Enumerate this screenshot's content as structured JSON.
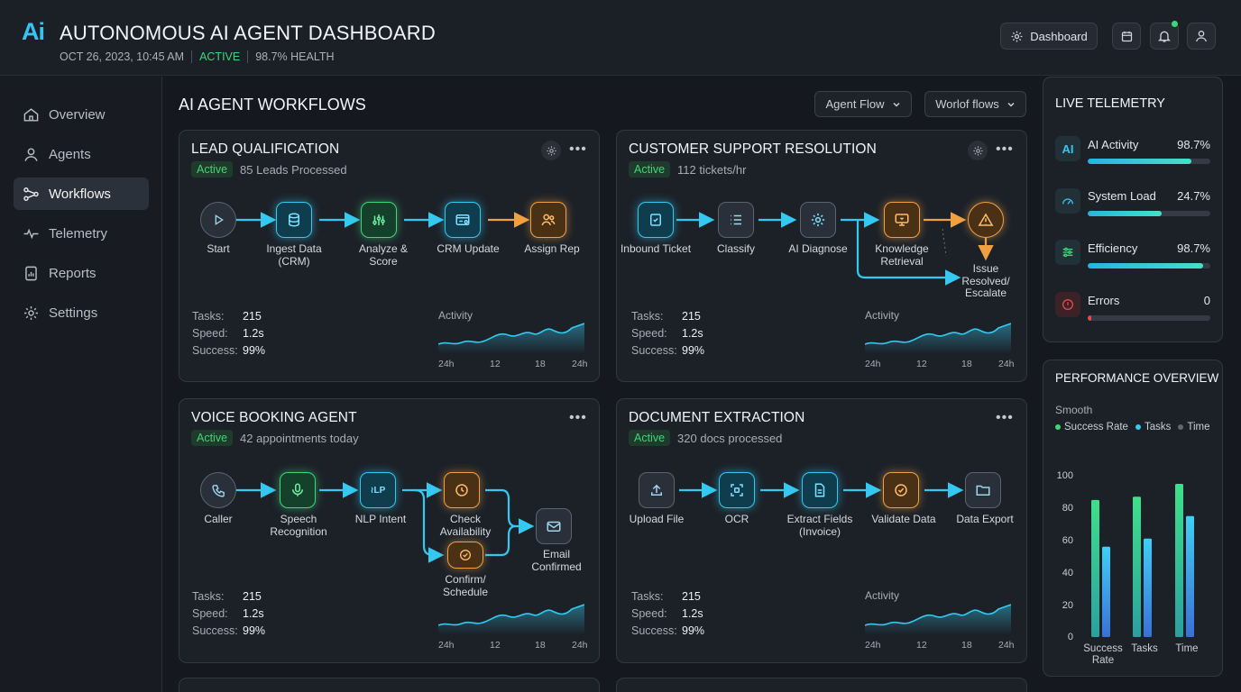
{
  "header": {
    "logo": "Ai",
    "title": "AUTONOMOUS AI AGENT DASHBOARD",
    "datetime": "OCT 26, 2023, 10:45 AM",
    "status": "ACTIVE",
    "health": "98.7% HEALTH",
    "dashboard_label": "Dashboard"
  },
  "sidebar": {
    "items": [
      {
        "label": "Overview",
        "icon": "home-icon"
      },
      {
        "label": "Agents",
        "icon": "user-icon"
      },
      {
        "label": "Workflows",
        "icon": "workflow-icon"
      },
      {
        "label": "Telemetry",
        "icon": "pulse-icon"
      },
      {
        "label": "Reports",
        "icon": "report-icon"
      },
      {
        "label": "Settings",
        "icon": "gear-icon"
      }
    ],
    "active": "Workflows"
  },
  "main": {
    "title": "AI AGENT WORKFLOWS",
    "dropdowns": [
      "Agent Flow",
      "Worlof flows"
    ]
  },
  "cards": [
    {
      "title": "LEAD QUALIFICATION",
      "status": "Active",
      "subtitle": "85 Leads Processed",
      "nodes": [
        "Start",
        "Ingest Data (CRM)",
        "Analyze & Score",
        "CRM Update",
        "Assign Rep"
      ],
      "stats": {
        "tasks_label": "Tasks:",
        "tasks": "215",
        "speed_label": "Speed:",
        "speed": "1.2s",
        "success_label": "Success:",
        "success": "99%"
      },
      "activity_label": "Activity",
      "ticks": [
        "24h",
        "12",
        "18",
        "24h"
      ]
    },
    {
      "title": "CUSTOMER SUPPORT RESOLUTION",
      "status": "Active",
      "subtitle": "112 tickets/hr",
      "nodes": [
        "Inbound Ticket",
        "Classify",
        "AI Diagnose",
        "Knowledge Retrieval",
        "Issue Resolved/ Escalate"
      ],
      "stats": {
        "tasks_label": "Tasks:",
        "tasks": "215",
        "speed_label": "Speed:",
        "speed": "1.2s",
        "success_label": "Success:",
        "success": "99%"
      },
      "activity_label": "Activity",
      "ticks": [
        "24h",
        "12",
        "18",
        "24h"
      ]
    },
    {
      "title": "VOICE BOOKING AGENT",
      "status": "Active",
      "subtitle": "42 appointments today",
      "nodes": [
        "Caller",
        "Speech Recognition",
        "NLP Intent",
        "Check Availability",
        "Confirm/ Schedule",
        "Email Confirmed"
      ],
      "stats": {
        "tasks_label": "Tasks:",
        "tasks": "215",
        "speed_label": "Speed:",
        "speed": "1.2s",
        "success_label": "Success:",
        "success": "99%"
      },
      "ticks": [
        "24h",
        "12",
        "18",
        "24h"
      ]
    },
    {
      "title": "DOCUMENT EXTRACTION",
      "status": "Active",
      "subtitle": "320 docs processed",
      "nodes": [
        "Upload File",
        "OCR",
        "Extract Fields (Invoice)",
        "Validate Data",
        "Data Export"
      ],
      "stats": {
        "tasks_label": "Tasks:",
        "tasks": "215",
        "speed_label": "Speed:",
        "speed": "1.2s",
        "success_label": "Success:",
        "success": "99%"
      },
      "activity_label": "Activity",
      "ticks": [
        "24h",
        "12",
        "18",
        "24h"
      ]
    }
  ],
  "telemetry": {
    "title": "LIVE TELEMETRY",
    "rows": [
      {
        "label": "AI Activity",
        "value": "98.7%",
        "fraction": 0.845,
        "icon": "ai-icon"
      },
      {
        "label": "System Load",
        "value": "24.7%",
        "fraction": 0.6,
        "icon": "gauge-icon"
      },
      {
        "label": "Efficiency",
        "value": "98.7%",
        "fraction": 0.94,
        "icon": "sliders-icon"
      },
      {
        "label": "Errors",
        "value": "0",
        "fraction": 0.03,
        "icon": "alert-icon"
      }
    ]
  },
  "performance": {
    "title": "PERFORMANCE OVERVIEW",
    "mode": "Smooth",
    "legend": [
      "Success Rate",
      "Tasks",
      "Time"
    ],
    "colors": {
      "green": "#3fd67a",
      "cyan": "#33c9f0",
      "grey": "#5f6670"
    }
  },
  "chart_data": {
    "type": "bar",
    "categories": [
      "Success Rate",
      "Tasks",
      "Time"
    ],
    "series": [
      {
        "name": "Success Rate",
        "values": [
          85,
          87,
          95
        ]
      },
      {
        "name": "Tasks",
        "values": [
          56,
          61,
          75
        ]
      }
    ],
    "yticks": [
      "100",
      "80",
      "60",
      "40",
      "20",
      "0"
    ],
    "ylim": [
      0,
      100
    ]
  }
}
